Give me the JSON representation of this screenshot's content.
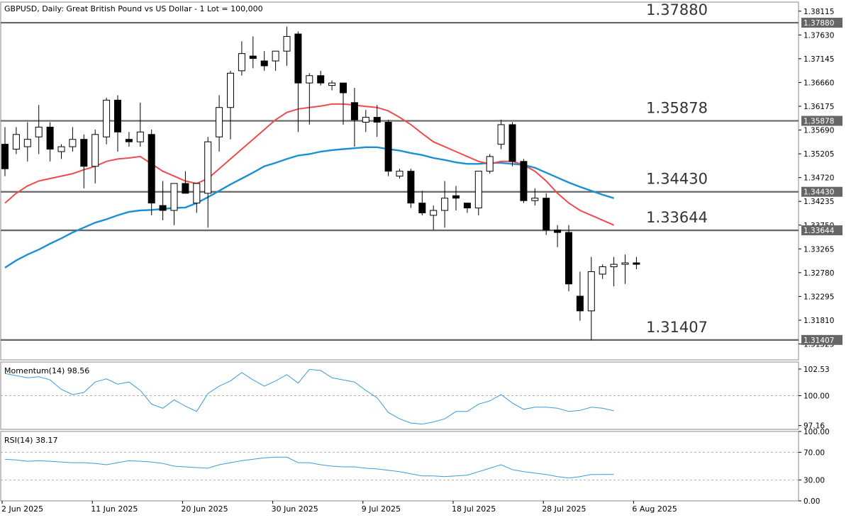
{
  "title": "GBPUSD, Daily:  Great British Pound vs US Dollar - 1 Lot = 100,000",
  "colors": {
    "ma_fast": "#ef4b4f",
    "ma_slow": "#1b8fd2",
    "level_line": "#666666",
    "indicator_line": "#3e9ad6",
    "bear_candle": "#000000",
    "bull_candle": "#ffffff"
  },
  "chart_data": [
    {
      "type": "candlestick",
      "title": "GBPUSD, Daily:  Great British Pound vs US Dollar - 1 Lot = 100,000",
      "ylim": [
        1.31,
        1.383
      ],
      "y_ticks": [
        "1.38115",
        "1.37630",
        "1.37145",
        "1.36660",
        "1.36175",
        "1.35690",
        "1.35205",
        "1.34720",
        "1.34235",
        "1.33750",
        "1.33265",
        "1.32780",
        "1.32295",
        "1.31810",
        "1.31325"
      ],
      "levels": [
        {
          "value": 1.3788,
          "label": "1.37880",
          "tag": "1.37880"
        },
        {
          "value": 1.35878,
          "label": "1.35878",
          "tag": "1.35878"
        },
        {
          "value": 1.3443,
          "label": "1.34430",
          "tag": "1.34430"
        },
        {
          "value": 1.33644,
          "label": "1.33644",
          "tag": "1.33644"
        },
        {
          "value": 1.31407,
          "label": "1.31407",
          "tag": "1.31407"
        }
      ],
      "candles": [
        [
          1.354,
          1.3575,
          1.3475,
          1.349
        ],
        [
          1.353,
          1.3575,
          1.352,
          1.356
        ],
        [
          1.3535,
          1.3585,
          1.3505,
          1.355
        ],
        [
          1.3555,
          1.362,
          1.352,
          1.3575
        ],
        [
          1.3575,
          1.3585,
          1.3505,
          1.353
        ],
        [
          1.3525,
          1.354,
          1.351,
          1.3535
        ],
        [
          1.3535,
          1.3575,
          1.3525,
          1.355
        ],
        [
          1.355,
          1.356,
          1.345,
          1.3495
        ],
        [
          1.3495,
          1.357,
          1.346,
          1.356
        ],
        [
          1.3555,
          1.3635,
          1.354,
          1.363
        ],
        [
          1.363,
          1.364,
          1.3525,
          1.3565
        ],
        [
          1.355,
          1.3565,
          1.3535,
          1.3545
        ],
        [
          1.3545,
          1.3625,
          1.3535,
          1.3565
        ],
        [
          1.356,
          1.357,
          1.3395,
          1.342
        ],
        [
          1.3415,
          1.3465,
          1.3385,
          1.3405
        ],
        [
          1.3405,
          1.346,
          1.3375,
          1.346
        ],
        [
          1.346,
          1.3485,
          1.344,
          1.344
        ],
        [
          1.342,
          1.346,
          1.34,
          1.346
        ],
        [
          1.344,
          1.3555,
          1.337,
          1.3545
        ],
        [
          1.3555,
          1.364,
          1.3525,
          1.3615
        ],
        [
          1.3615,
          1.369,
          1.355,
          1.3685
        ],
        [
          1.369,
          1.375,
          1.368,
          1.3725
        ],
        [
          1.372,
          1.376,
          1.3695,
          1.3715
        ],
        [
          1.371,
          1.373,
          1.369,
          1.37
        ],
        [
          1.371,
          1.373,
          1.369,
          1.373
        ],
        [
          1.373,
          1.378,
          1.37,
          1.376
        ],
        [
          1.3765,
          1.377,
          1.3565,
          1.3665
        ],
        [
          1.3665,
          1.3685,
          1.358,
          1.368
        ],
        [
          1.368,
          1.369,
          1.366,
          1.3665
        ],
        [
          1.366,
          1.367,
          1.365,
          1.3665
        ],
        [
          1.3665,
          1.3665,
          1.358,
          1.3645
        ],
        [
          1.3625,
          1.3655,
          1.3535,
          1.359
        ],
        [
          1.3585,
          1.361,
          1.3565,
          1.3595
        ],
        [
          1.3595,
          1.362,
          1.3555,
          1.3585
        ],
        [
          1.3585,
          1.359,
          1.3475,
          1.3485
        ],
        [
          1.3475,
          1.349,
          1.347,
          1.3485
        ],
        [
          1.3485,
          1.349,
          1.341,
          1.342
        ],
        [
          1.342,
          1.3445,
          1.3395,
          1.34
        ],
        [
          1.3395,
          1.3415,
          1.3365,
          1.3405
        ],
        [
          1.3405,
          1.3465,
          1.337,
          1.343
        ],
        [
          1.3435,
          1.3455,
          1.3405,
          1.343
        ],
        [
          1.342,
          1.342,
          1.34,
          1.341
        ],
        [
          1.341,
          1.348,
          1.3395,
          1.3485
        ],
        [
          1.3485,
          1.352,
          1.348,
          1.3515
        ],
        [
          1.354,
          1.359,
          1.353,
          1.358
        ],
        [
          1.358,
          1.3585,
          1.3495,
          1.3505
        ],
        [
          1.3505,
          1.351,
          1.342,
          1.3425
        ],
        [
          1.3425,
          1.345,
          1.3415,
          1.343
        ],
        [
          1.343,
          1.344,
          1.3355,
          1.3365
        ],
        [
          1.3365,
          1.3375,
          1.333,
          1.336
        ],
        [
          1.336,
          1.3375,
          1.324,
          1.3255
        ],
        [
          1.323,
          1.328,
          1.318,
          1.32
        ],
        [
          1.32,
          1.331,
          1.314,
          1.328
        ],
        [
          1.3275,
          1.3295,
          1.3265,
          1.329
        ],
        [
          1.329,
          1.331,
          1.325,
          1.3295
        ],
        [
          1.3295,
          1.3315,
          1.3255,
          1.3298
        ],
        [
          1.3298,
          1.331,
          1.3285,
          1.3295
        ]
      ],
      "ma_fast": [
        1.342,
        1.344,
        1.3455,
        1.3465,
        1.347,
        1.3475,
        1.348,
        1.3488,
        1.3495,
        1.3505,
        1.351,
        1.3512,
        1.3515,
        1.35,
        1.3485,
        1.3475,
        1.3465,
        1.346,
        1.347,
        1.349,
        1.351,
        1.353,
        1.355,
        1.357,
        1.359,
        1.3605,
        1.3612,
        1.3615,
        1.3618,
        1.3622,
        1.3622,
        1.362,
        1.3617,
        1.3615,
        1.3608,
        1.3595,
        1.358,
        1.3562,
        1.3545,
        1.3535,
        1.3525,
        1.3515,
        1.3505,
        1.35,
        1.3505,
        1.3505,
        1.3498,
        1.3485,
        1.3465,
        1.344,
        1.342,
        1.3405,
        1.3395,
        1.3385,
        1.3375
      ],
      "ma_slow": [
        1.3288,
        1.3303,
        1.3315,
        1.3325,
        1.3337,
        1.3348,
        1.336,
        1.337,
        1.338,
        1.3387,
        1.3395,
        1.3402,
        1.3405,
        1.3406,
        1.3408,
        1.341,
        1.3411,
        1.342,
        1.3432,
        1.3445,
        1.3458,
        1.347,
        1.3482,
        1.3495,
        1.3502,
        1.351,
        1.3517,
        1.352,
        1.3525,
        1.3528,
        1.353,
        1.3532,
        1.3534,
        1.3534,
        1.353,
        1.3527,
        1.3522,
        1.3518,
        1.3512,
        1.3508,
        1.3503,
        1.35,
        1.35,
        1.3502,
        1.3502,
        1.35,
        1.3498,
        1.3492,
        1.3482,
        1.3472,
        1.3462,
        1.3453,
        1.3445,
        1.3437,
        1.343
      ]
    },
    {
      "type": "line",
      "title": "Momentum(14) 98.56",
      "ylim": [
        96.8,
        103.2
      ],
      "y_ticks": [
        "102.53",
        "100.00",
        "97.16"
      ],
      "values": [
        102.1,
        101.9,
        101.7,
        101.8,
        101.5,
        100.6,
        100.1,
        100.3,
        101.3,
        101.6,
        101.1,
        101.3,
        100.5,
        99.2,
        98.8,
        99.6,
        99.0,
        98.5,
        100.2,
        100.9,
        101.4,
        102.2,
        101.5,
        100.9,
        101.4,
        102.0,
        101.2,
        102.5,
        102.4,
        101.7,
        101.5,
        101.3,
        100.5,
        99.8,
        98.4,
        97.8,
        97.4,
        97.3,
        97.5,
        97.8,
        98.5,
        98.5,
        99.2,
        99.5,
        100.1,
        99.3,
        98.7,
        98.9,
        98.9,
        98.8,
        98.5,
        98.6,
        98.9,
        98.8,
        98.56
      ],
      "dashed_ref": 100.0
    },
    {
      "type": "line",
      "title": "RSI(14) 38.17",
      "ylim": [
        0,
        100
      ],
      "y_ticks": [
        "100.00",
        "70.00",
        "30.00",
        "0.00"
      ],
      "values": [
        60,
        59,
        57,
        58,
        57,
        56,
        55,
        55,
        54,
        52,
        55,
        58,
        57,
        56,
        54,
        50,
        49,
        48,
        47,
        52,
        55,
        58,
        60,
        62,
        63,
        63,
        55,
        55,
        52,
        50,
        49,
        49,
        47,
        46,
        44,
        42,
        39,
        36,
        36,
        35,
        36,
        37,
        42,
        47,
        52,
        45,
        42,
        40,
        38,
        35,
        33,
        35,
        38,
        38,
        38.17
      ],
      "dashed_ref": [
        70,
        30
      ]
    }
  ],
  "x_axis": {
    "labels": [
      "2 Jun 2025",
      "11 Jun 2025",
      "20 Jun 2025",
      "30 Jun 2025",
      "9 Jul 2025",
      "18 Jul 2025",
      "28 Jul 2025",
      "6 Aug 2025"
    ]
  }
}
